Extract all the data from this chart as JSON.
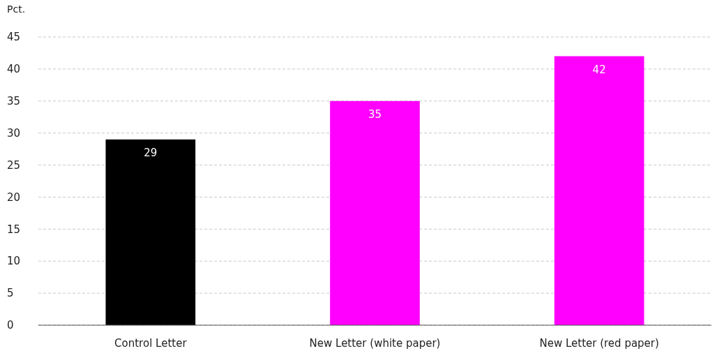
{
  "chart_data": {
    "type": "bar",
    "ylabel": "Pct.",
    "categories": [
      "Control Letter",
      "New Letter (white paper)",
      "New Letter (red paper)"
    ],
    "values": [
      29,
      35,
      42
    ],
    "colors": [
      "#000000",
      "#ff00ff",
      "#ff00ff"
    ],
    "ylim": [
      0,
      45
    ],
    "yticks": [
      0,
      5,
      10,
      15,
      20,
      25,
      30,
      35,
      40,
      45
    ],
    "grid": "y",
    "data_labels": true
  }
}
